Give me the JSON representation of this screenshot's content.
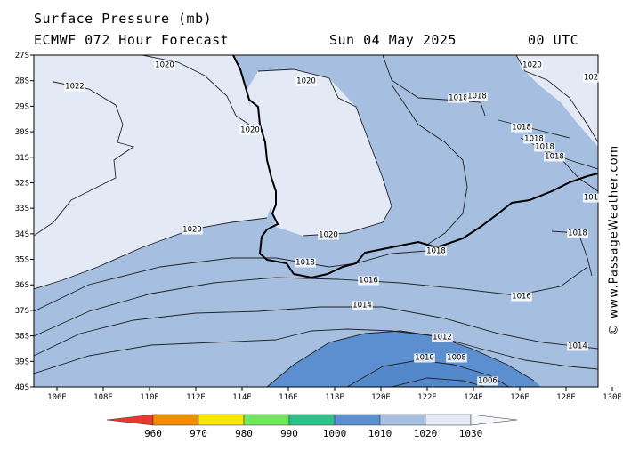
{
  "header": {
    "title": "Surface Pressure (mb)",
    "model": "ECMWF 072 Hour Forecast",
    "valid_date": "Sun 04 May 2025",
    "valid_time": "00 UTC"
  },
  "credit": "© www.PassageWeather.com",
  "axes": {
    "lat_labels": [
      "27S",
      "28S",
      "29S",
      "30S",
      "31S",
      "32S",
      "33S",
      "34S",
      "35S",
      "36S",
      "37S",
      "38S",
      "39S",
      "40S"
    ],
    "lon_labels": [
      "106E",
      "108E",
      "110E",
      "112E",
      "114E",
      "116E",
      "118E",
      "120E",
      "122E",
      "124E",
      "126E",
      "128E",
      "130E"
    ]
  },
  "isobar_labels": [
    {
      "id": "iso-1020-nw",
      "text": "1020"
    },
    {
      "id": "iso-1022",
      "text": "1022"
    },
    {
      "id": "iso-1020-land",
      "text": "1020"
    },
    {
      "id": "iso-1020-coast",
      "text": "1020"
    },
    {
      "id": "iso-1020-ne",
      "text": "1020"
    },
    {
      "id": "iso-102-edge",
      "text": "102"
    },
    {
      "id": "iso-1018-a",
      "text": "1018"
    },
    {
      "id": "iso-1018-b",
      "text": "1018"
    },
    {
      "id": "iso-1018-c",
      "text": "1018"
    },
    {
      "id": "iso-1018-d",
      "text": "1018"
    },
    {
      "id": "iso-1018-e",
      "text": "1018"
    },
    {
      "id": "iso-1018-f",
      "text": "1018"
    },
    {
      "id": "iso-101-edge",
      "text": "101"
    },
    {
      "id": "iso-1020-w",
      "text": "1020"
    },
    {
      "id": "iso-1020-s",
      "text": "1020"
    },
    {
      "id": "iso-1018-g",
      "text": "1018"
    },
    {
      "id": "iso-1018-h",
      "text": "1018"
    },
    {
      "id": "iso-1018-i",
      "text": "1018"
    },
    {
      "id": "iso-1016-a",
      "text": "1016"
    },
    {
      "id": "iso-1016-b",
      "text": "1016"
    },
    {
      "id": "iso-1014-a",
      "text": "1014"
    },
    {
      "id": "iso-1014-b",
      "text": "1014"
    },
    {
      "id": "iso-1012",
      "text": "1012"
    },
    {
      "id": "iso-1010",
      "text": "1010"
    },
    {
      "id": "iso-1008",
      "text": "1008"
    },
    {
      "id": "iso-1006",
      "text": "1006"
    }
  ],
  "legend": {
    "labels": [
      "960",
      "970",
      "980",
      "990",
      "1000",
      "1010",
      "1020",
      "1030"
    ],
    "colors": [
      "#e83a2e",
      "#f28c00",
      "#f7e600",
      "#6ee85a",
      "#2ec08a",
      "#5b8fd0",
      "#a6bfe0",
      "#e3eaf5"
    ]
  },
  "colors": {
    "band_1022": "#e3eaf5",
    "band_1020": "#e3eaf5",
    "band_1018": "#a6bfe0",
    "band_1014": "#a6bfe0",
    "band_1010": "#5b8fd0",
    "isobar": "#222222",
    "coast": "#000000"
  }
}
